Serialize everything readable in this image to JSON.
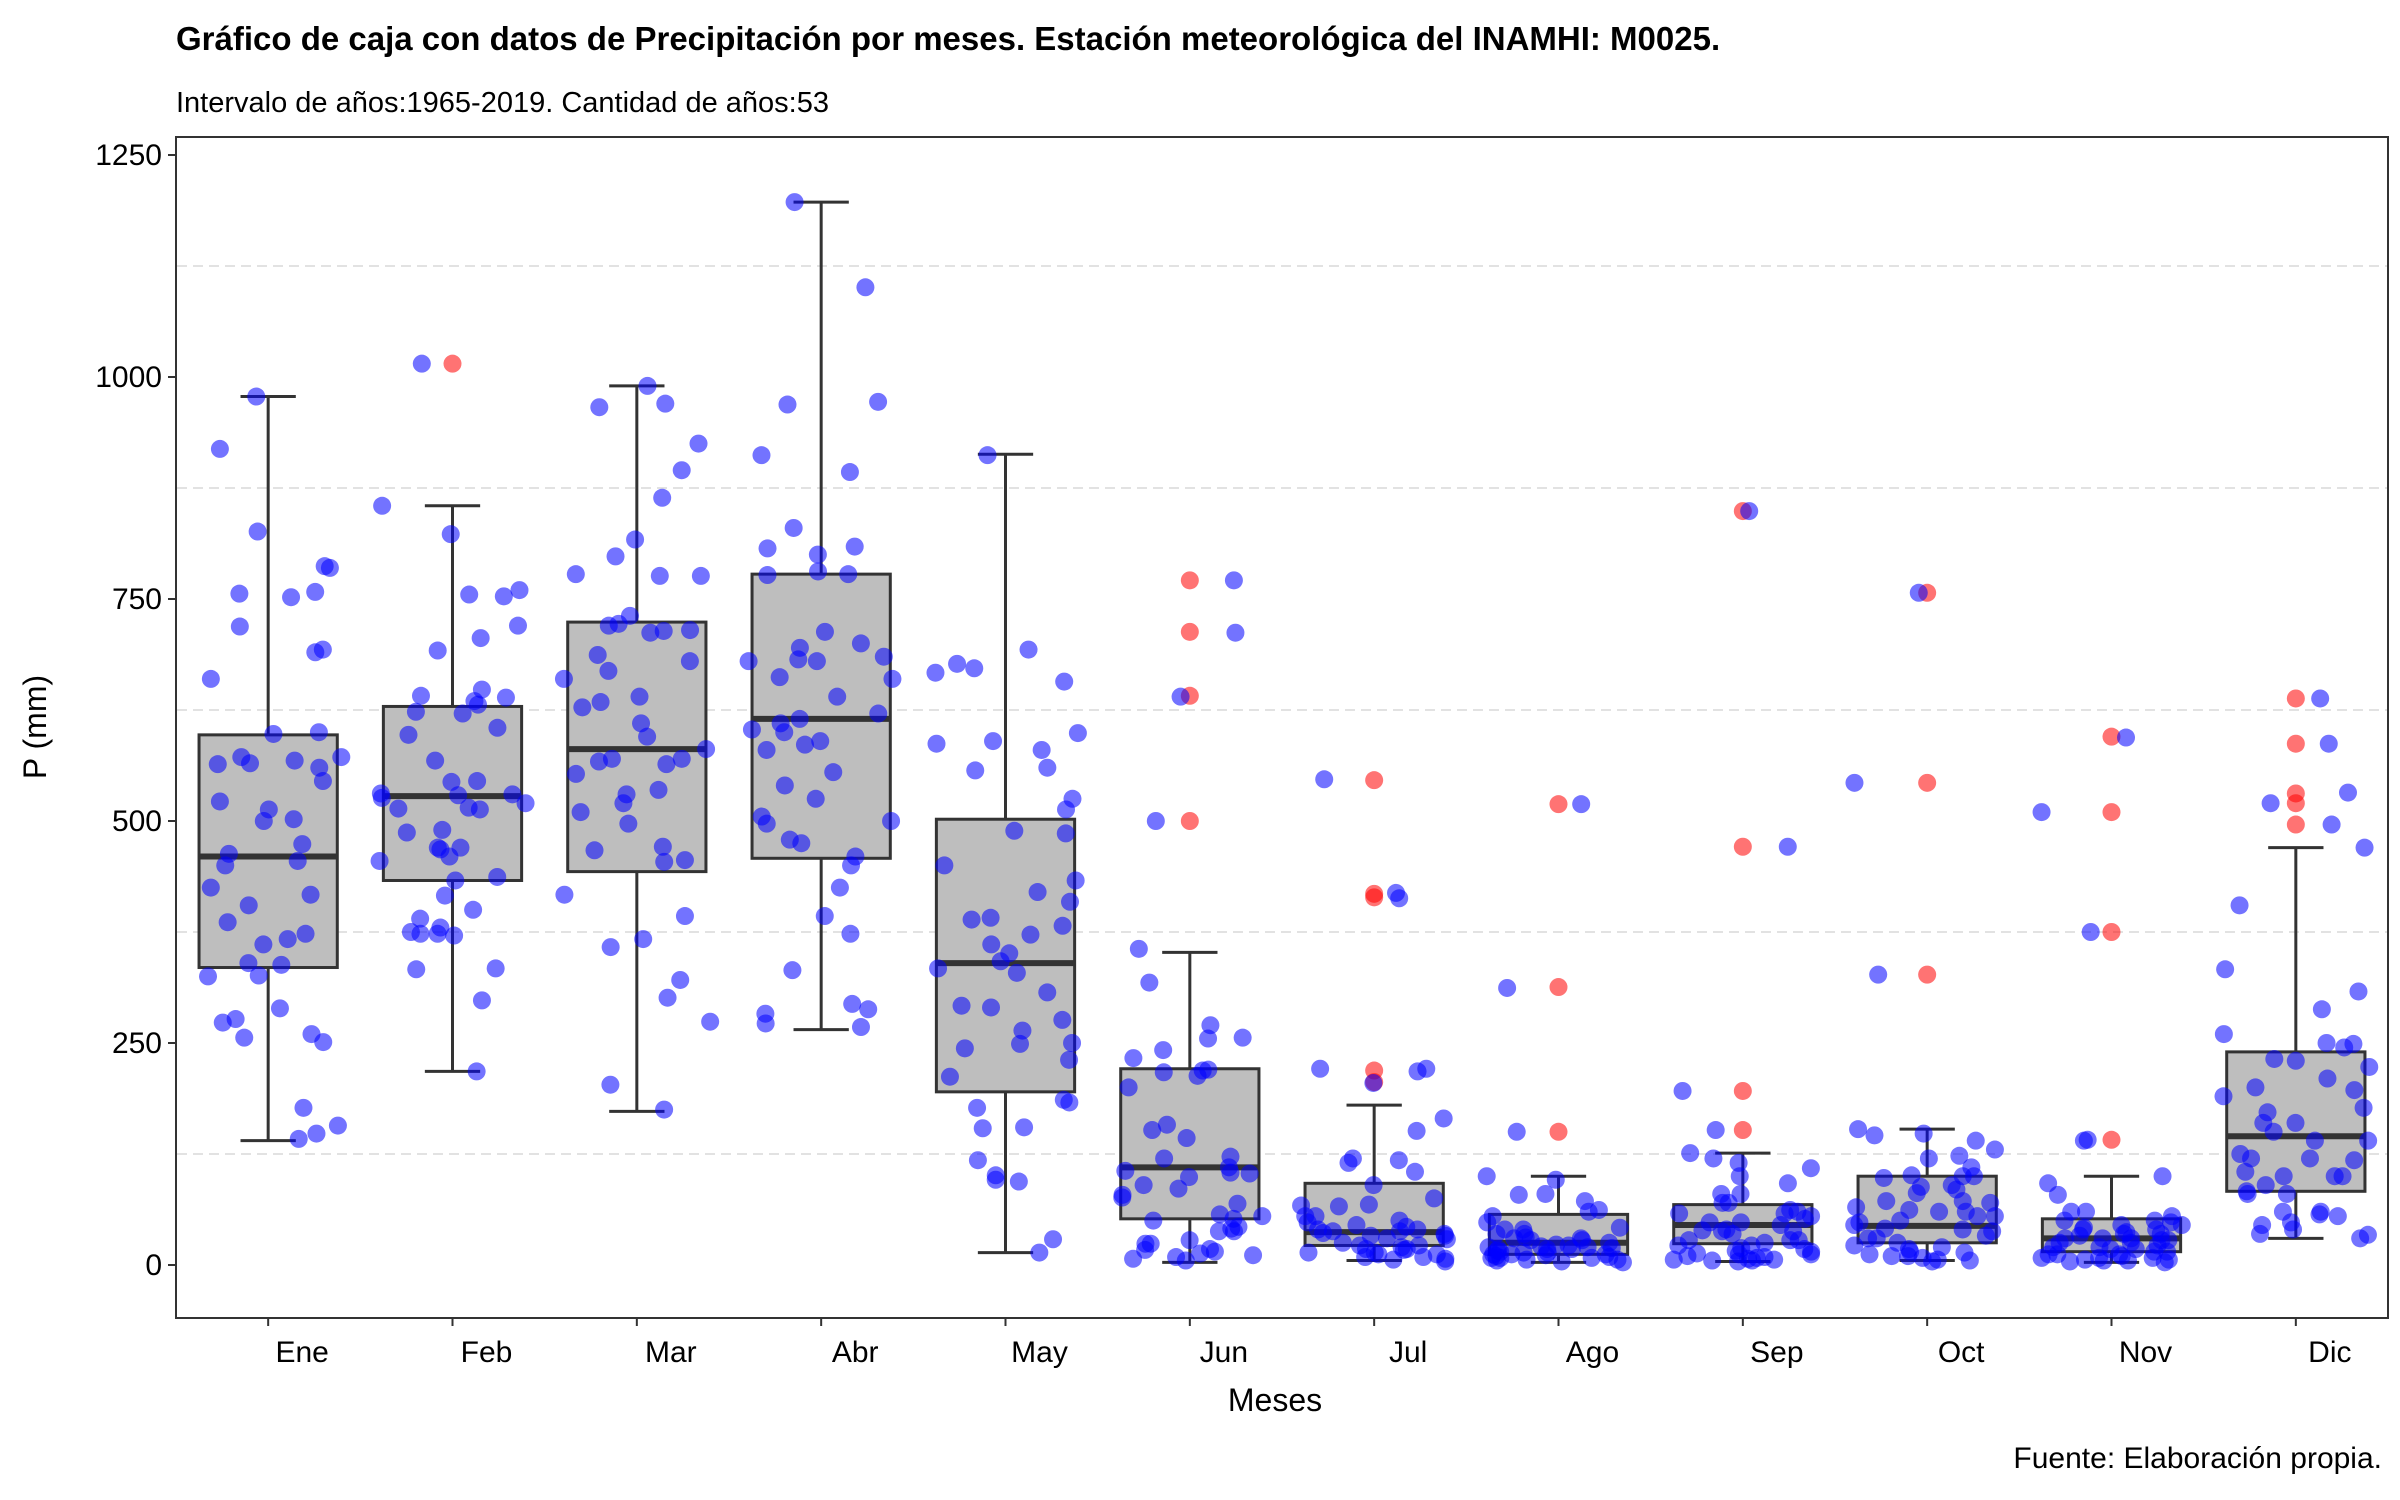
{
  "chart_data": {
    "type": "boxplot",
    "title": "Gráfico de caja con datos de Precipitación por meses. Estación meteorológica del INAMHI: M0025.",
    "subtitle": "Intervalo de años:1965-2019. Cantidad de años:53",
    "caption": "Fuente: Elaboración propia.",
    "xlabel": "Meses",
    "ylabel": "P (mm)",
    "ylim": [
      -55,
      1255
    ],
    "yticks": [
      0,
      250,
      500,
      750,
      1000,
      1250
    ],
    "ytick_labels": [
      "0",
      "250",
      "500",
      "750",
      "1000",
      "1250"
    ],
    "categories": [
      "Ene",
      "Feb",
      "Mar",
      "Abr",
      "May",
      "Jun",
      "Jul",
      "Ago",
      "Sep",
      "Oct",
      "Nov",
      "Dic"
    ],
    "grid": "horizontal-dashed",
    "colors": {
      "box_fill": "#bebebe",
      "box_line": "#333333",
      "points": "#0000ff",
      "outliers": "#ff0000",
      "panel_border": "#333333",
      "grid": "#d9d9d9"
    },
    "boxes": [
      {
        "month": "Ene",
        "whisker_low": 140,
        "q1": 335,
        "median": 460,
        "q3": 597,
        "whisker_high": 978,
        "outliers": []
      },
      {
        "month": "Feb",
        "whisker_low": 218,
        "q1": 433,
        "median": 528,
        "q3": 629,
        "whisker_high": 855,
        "outliers": [
          1015
        ]
      },
      {
        "month": "Mar",
        "whisker_low": 173,
        "q1": 443,
        "median": 581,
        "q3": 724,
        "whisker_high": 990,
        "outliers": []
      },
      {
        "month": "Abr",
        "whisker_low": 265,
        "q1": 458,
        "median": 615,
        "q3": 778,
        "whisker_high": 1197,
        "outliers": []
      },
      {
        "month": "May",
        "whisker_low": 14,
        "q1": 195,
        "median": 340,
        "q3": 502,
        "whisker_high": 913,
        "outliers": []
      },
      {
        "month": "Jun",
        "whisker_low": 3,
        "q1": 52,
        "median": 110,
        "q3": 221,
        "whisker_high": 352,
        "outliers": [
          500,
          641,
          713,
          771
        ]
      },
      {
        "month": "Jul",
        "whisker_low": 5,
        "q1": 22,
        "median": 37,
        "q3": 92,
        "whisker_high": 180,
        "outliers": [
          206,
          219,
          414,
          418,
          546
        ]
      },
      {
        "month": "Ago",
        "whisker_low": 3,
        "q1": 12,
        "median": 25,
        "q3": 57,
        "whisker_high": 100,
        "outliers": [
          150,
          313,
          519
        ]
      },
      {
        "month": "Sep",
        "whisker_low": 4,
        "q1": 24,
        "median": 45,
        "q3": 68,
        "whisker_high": 126,
        "outliers": [
          152,
          196,
          471,
          849
        ]
      },
      {
        "month": "Oct",
        "whisker_low": 5,
        "q1": 25,
        "median": 44,
        "q3": 100,
        "whisker_high": 153,
        "outliers": [
          327,
          543,
          757
        ]
      },
      {
        "month": "Nov",
        "whisker_low": 3,
        "q1": 15,
        "median": 30,
        "q3": 52,
        "whisker_high": 100,
        "outliers": [
          141,
          375,
          510,
          595
        ]
      },
      {
        "month": "Dic",
        "whisker_low": 30,
        "q1": 83,
        "median": 145,
        "q3": 240,
        "whisker_high": 470,
        "outliers": [
          496,
          520,
          531,
          587,
          638
        ]
      }
    ],
    "points": [
      {
        "month": "Ene",
        "values": [
          752,
          756,
          367,
          572,
          568,
          502,
          522,
          787,
          142,
          148,
          177,
          256,
          260,
          273,
          289,
          463,
          450,
          417,
          545,
          600,
          660,
          500,
          474,
          340,
          277,
          405,
          785,
          693,
          978,
          826,
          690,
          919,
          564,
          572,
          565,
          513,
          157,
          361,
          373,
          386,
          326,
          251,
          758,
          719,
          598,
          560,
          455,
          425,
          338,
          325
        ]
      },
      {
        "month": "Feb",
        "values": [
          706,
          692,
          298,
          333,
          568,
          470,
          468,
          720,
          490,
          855,
          623,
          514,
          545,
          455,
          641,
          390,
          380,
          375,
          437,
          460,
          529,
          753,
          755,
          648,
          526,
          470,
          416,
          371,
          218,
          1015,
          823,
          760,
          597,
          433,
          530,
          515,
          531,
          400,
          635,
          373,
          605,
          513,
          373,
          334,
          520,
          544,
          487,
          621,
          631,
          639
        ]
      },
      {
        "month": "Mar",
        "values": [
          990,
          970,
          778,
          776,
          553,
          567,
          731,
          895,
          720,
          715,
          687,
          570,
          520,
          530,
          417,
          358,
          301,
          393,
          321,
          274,
          712,
          680,
          669,
          660,
          634,
          610,
          535,
          454,
          864,
          817,
          776,
          925,
          714,
          628,
          595,
          467,
          471,
          497,
          203,
          175,
          798,
          722,
          966,
          570,
          510,
          367,
          581,
          564,
          640,
          456
        ]
      },
      {
        "month": "Abr",
        "values": [
          1101,
          1197,
          800,
          781,
          777,
          621,
          682,
          680,
          640,
          586,
          505,
          497,
          283,
          272,
          268,
          294,
          450,
          615,
          662,
          680,
          685,
          830,
          912,
          972,
          695,
          660,
          610,
          600,
          555,
          500,
          540,
          460,
          332,
          288,
          479,
          393,
          809,
          713,
          893,
          778,
          969,
          807,
          700,
          603,
          580,
          590,
          525,
          475,
          373,
          425
        ]
      },
      {
        "month": "May",
        "values": [
          329,
          154,
          101,
          96,
          94,
          118,
          183,
          231,
          264,
          290,
          276,
          389,
          334,
          361,
          391,
          409,
          433,
          587,
          590,
          912,
          677,
          657,
          557,
          525,
          420,
          599,
          560,
          342,
          372,
          186,
          177,
          307,
          249,
          155,
          489,
          450,
          513,
          580,
          667,
          693,
          672,
          29,
          14,
          250,
          351,
          382,
          292,
          212,
          244,
          486
        ]
      },
      {
        "month": "Jun",
        "values": [
          771,
          500,
          217,
          256,
          122,
          38,
          57,
          24,
          43,
          69,
          110,
          318,
          356,
          200,
          152,
          158,
          143,
          99,
          106,
          120,
          220,
          103,
          90,
          76,
          50,
          41,
          28,
          18,
          13,
          7,
          712,
          640,
          270,
          255,
          242,
          233,
          219,
          213,
          104,
          86,
          79,
          55,
          52,
          38,
          24,
          17,
          15,
          11,
          9,
          5
        ]
      },
      {
        "month": "Jul",
        "values": [
          165,
          38,
          33,
          20,
          12,
          14,
          17,
          43,
          25,
          66,
          48,
          547,
          221,
          205,
          115,
          67,
          55,
          33,
          22,
          30,
          35,
          40,
          18,
          9,
          7,
          419,
          413,
          221,
          218,
          120,
          118,
          90,
          75,
          68,
          55,
          50,
          40,
          36,
          29,
          22,
          18,
          14,
          12,
          9,
          6,
          4,
          151,
          105,
          45,
          38
        ]
      },
      {
        "month": "Ago",
        "values": [
          8,
          12,
          20,
          25,
          11,
          19,
          30,
          14,
          312,
          16,
          18,
          22,
          28,
          35,
          31,
          40,
          18,
          12,
          8,
          6,
          9,
          15,
          23,
          42,
          55,
          60,
          72,
          80,
          100,
          40,
          30,
          20,
          12,
          519,
          150,
          96,
          79,
          62,
          48,
          35,
          28,
          21,
          18,
          14,
          10,
          8,
          6,
          5,
          4,
          3
        ]
      },
      {
        "month": "Sep",
        "values": [
          471,
          13,
          22,
          39,
          52,
          58,
          80,
          109,
          120,
          196,
          38,
          25,
          19,
          16,
          12,
          9,
          7,
          6,
          5,
          28,
          45,
          60,
          70,
          100,
          126,
          849,
          152,
          115,
          92,
          80,
          70,
          62,
          55,
          48,
          40,
          35,
          28,
          22,
          18,
          15,
          12,
          10,
          8,
          6,
          5,
          4,
          28,
          38,
          48,
          58
        ]
      },
      {
        "month": "Oct",
        "values": [
          146,
          140,
          327,
          543,
          14,
          25,
          33,
          41,
          55,
          62,
          72,
          81,
          98,
          101,
          123,
          148,
          100,
          90,
          85,
          70,
          60,
          50,
          40,
          30,
          20,
          10,
          757,
          153,
          130,
          120,
          110,
          100,
          88,
          72,
          60,
          48,
          38,
          30,
          22,
          18,
          15,
          12,
          10,
          8,
          6,
          5,
          4,
          45,
          55,
          65
        ]
      },
      {
        "month": "Nov",
        "values": [
          594,
          510,
          375,
          141,
          92,
          79,
          60,
          45,
          35,
          28,
          20,
          15,
          12,
          8,
          5,
          30,
          40,
          50,
          55,
          42,
          37,
          30,
          25,
          18,
          12,
          8,
          6,
          140,
          100,
          60,
          50,
          45,
          40,
          35,
          30,
          28,
          25,
          22,
          20,
          18,
          15,
          12,
          10,
          8,
          6,
          5,
          4,
          3,
          33,
          48
        ]
      },
      {
        "month": "Dic",
        "values": [
          638,
          532,
          496,
          333,
          249,
          223,
          100,
          90,
          83,
          105,
          120,
          150,
          197,
          232,
          250,
          200,
          160,
          140,
          120,
          100,
          80,
          60,
          45,
          35,
          30,
          587,
          520,
          405,
          288,
          245,
          230,
          210,
          190,
          172,
          160,
          140,
          118,
          100,
          80,
          60,
          48,
          40,
          34,
          470,
          308,
          260,
          177,
          125,
          57,
          55
        ]
      }
    ]
  }
}
